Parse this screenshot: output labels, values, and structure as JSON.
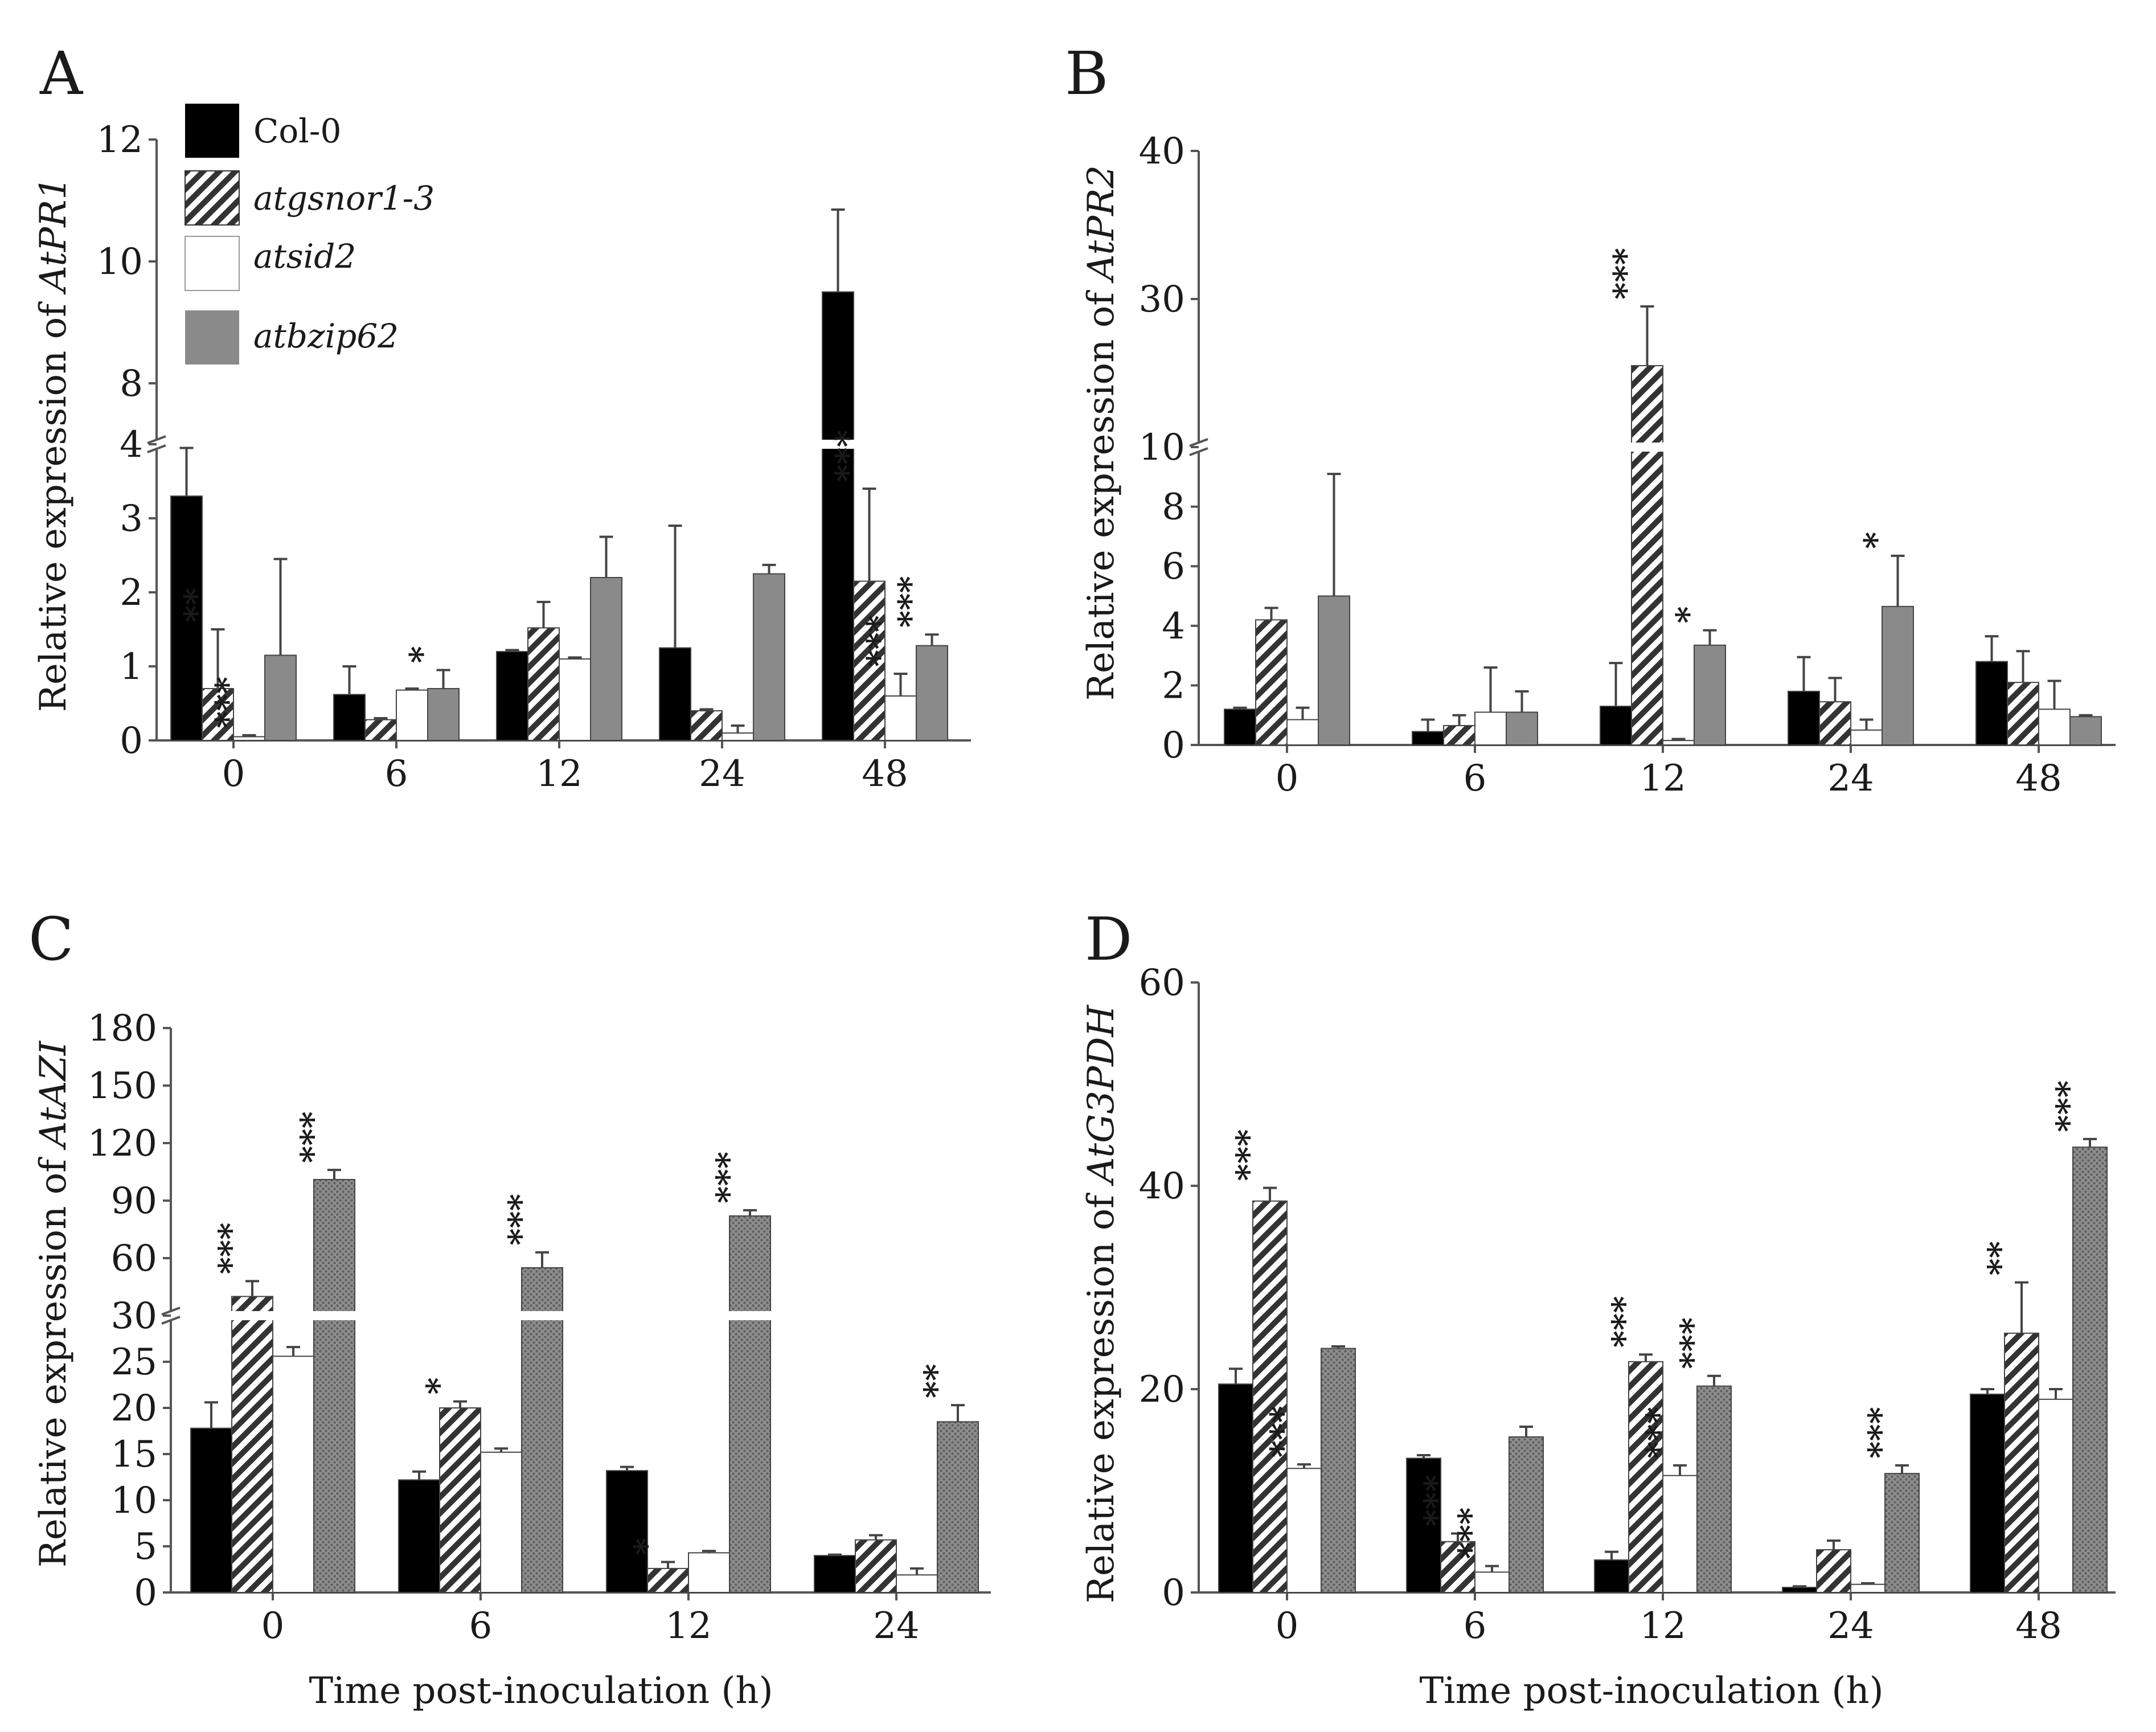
{
  "figure": {
    "colors": {
      "Col-0": "#000000",
      "atgsnor1-3": "hatch",
      "atsid2": "#ffffff",
      "atbzip62": "#8a8a8a",
      "atbzip62_dark": "#7a7a7a",
      "axis": "#555555"
    }
  },
  "chart_data": [
    {
      "panel": "A",
      "type": "bar",
      "ylabel_prefix": "Relative expression of ",
      "ylabel_gene": "AtPR1",
      "xlabel": "",
      "categories": [
        "0",
        "6",
        "12",
        "24",
        "48"
      ],
      "series": [
        {
          "name": "Col-0",
          "values": [
            3.3,
            0.62,
            1.2,
            1.25,
            9.5
          ],
          "errors": [
            0.65,
            0.38,
            0.02,
            1.65,
            1.35
          ],
          "sig": [
            "",
            "",
            "",
            "",
            ""
          ]
        },
        {
          "name": "atgsnor1-3",
          "values": [
            0.7,
            0.28,
            1.52,
            0.4,
            2.15
          ],
          "errors": [
            0.8,
            0.02,
            0.35,
            0.02,
            1.25
          ],
          "sig": [
            "**",
            "",
            "",
            "",
            "***"
          ]
        },
        {
          "name": "atsid2",
          "values": [
            0.05,
            0.68,
            1.1,
            0.1,
            0.6
          ],
          "errors": [
            0.02,
            0.02,
            0.02,
            0.1,
            0.3
          ],
          "sig": [
            "***",
            "",
            "",
            "",
            "***"
          ]
        },
        {
          "name": "atbzip62",
          "values": [
            1.15,
            0.7,
            2.2,
            2.25,
            1.28
          ],
          "errors": [
            1.3,
            0.25,
            0.55,
            0.12,
            0.15
          ],
          "sig": [
            "",
            "*",
            "",
            "",
            "***"
          ]
        }
      ],
      "y_axis": {
        "lower_ticks": [
          "0",
          "1",
          "2",
          "3",
          "4"
        ],
        "lower_range": [
          0,
          4
        ],
        "upper_ticks": [
          "8",
          "10",
          "12"
        ],
        "upper_range": [
          7,
          12
        ]
      },
      "legend": {
        "position": "top-left",
        "entries": [
          "Col-0",
          "atgsnor1-3",
          "atsid2",
          "atbzip62"
        ]
      }
    },
    {
      "panel": "B",
      "type": "bar",
      "ylabel_prefix": "Relative expression of ",
      "ylabel_gene": "AtPR2",
      "xlabel": "",
      "categories": [
        "0",
        "6",
        "12",
        "24",
        "48"
      ],
      "series": [
        {
          "name": "Col-0",
          "values": [
            1.2,
            0.45,
            1.3,
            1.8,
            2.8
          ],
          "errors": [
            0.05,
            0.4,
            1.45,
            1.15,
            0.85
          ],
          "sig": [
            "",
            "",
            "",
            "",
            ""
          ]
        },
        {
          "name": "atgsnor1-3",
          "values": [
            4.2,
            0.65,
            25.5,
            1.45,
            2.1
          ],
          "errors": [
            0.4,
            0.35,
            4.0,
            0.8,
            1.05
          ],
          "sig": [
            "",
            "",
            "***",
            "",
            ""
          ]
        },
        {
          "name": "atsid2",
          "values": [
            0.85,
            1.1,
            0.15,
            0.5,
            1.2
          ],
          "errors": [
            0.4,
            1.5,
            0.05,
            0.35,
            0.95
          ],
          "sig": [
            "",
            "",
            "",
            "",
            ""
          ]
        },
        {
          "name": "atbzip62",
          "values": [
            5.0,
            1.1,
            3.35,
            4.65,
            0.95
          ],
          "errors": [
            4.1,
            0.7,
            0.5,
            1.7,
            0.05
          ],
          "sig": [
            "",
            "",
            "*",
            "*",
            ""
          ]
        }
      ],
      "y_axis": {
        "lower_ticks": [
          "0",
          "2",
          "4",
          "6",
          "8",
          "10"
        ],
        "lower_range": [
          0,
          10
        ],
        "upper_ticks": [
          "30",
          "40"
        ],
        "upper_range": [
          20,
          40
        ]
      }
    },
    {
      "panel": "C",
      "type": "bar",
      "ylabel_prefix": "Relative expression of ",
      "ylabel_gene": "AtAZI",
      "xlabel": "Time post-inoculation (h)",
      "categories": [
        "0",
        "6",
        "12",
        "24"
      ],
      "series": [
        {
          "name": "Col-0",
          "values": [
            17.8,
            12.2,
            13.2,
            4.0
          ],
          "errors": [
            2.8,
            0.9,
            0.4,
            0.1
          ],
          "sig": [
            "",
            "",
            "",
            ""
          ]
        },
        {
          "name": "atgsnor1-3",
          "values": [
            40,
            20.0,
            2.6,
            5.7
          ],
          "errors": [
            8,
            0.7,
            0.7,
            0.5
          ],
          "sig": [
            "***",
            "*",
            "*",
            ""
          ]
        },
        {
          "name": "atsid2",
          "values": [
            25.6,
            15.2,
            4.3,
            1.9
          ],
          "errors": [
            1.0,
            0.4,
            0.2,
            0.7
          ],
          "sig": [
            "",
            "",
            "",
            ""
          ]
        },
        {
          "name": "atbzip62",
          "values": [
            101,
            55,
            82,
            18.5
          ],
          "errors": [
            5,
            8,
            3,
            1.8
          ],
          "sig": [
            "***",
            "***",
            "***",
            "**"
          ]
        }
      ],
      "y_axis": {
        "lower_ticks": [
          "0",
          "5",
          "10",
          "15",
          "20",
          "25",
          "30"
        ],
        "lower_range": [
          0,
          30
        ],
        "upper_ticks": [
          "60",
          "90",
          "120",
          "150",
          "180"
        ],
        "upper_range": [
          30,
          180
        ]
      }
    },
    {
      "panel": "D",
      "type": "bar",
      "ylabel_prefix": "Relative expression of ",
      "ylabel_gene": "AtG3PDH",
      "xlabel": "Time post-inoculation (h)",
      "categories": [
        "0",
        "6",
        "12",
        "24",
        "48"
      ],
      "series": [
        {
          "name": "Col-0",
          "values": [
            20.5,
            13.2,
            3.2,
            0.5,
            19.5
          ],
          "errors": [
            1.5,
            0.3,
            0.8,
            0.1,
            0.5
          ],
          "sig": [
            "",
            "",
            "",
            "",
            ""
          ]
        },
        {
          "name": "atgsnor1-3",
          "values": [
            38.5,
            5.0,
            22.7,
            4.2,
            25.5
          ],
          "errors": [
            1.3,
            0.8,
            0.7,
            0.9,
            5.0
          ],
          "sig": [
            "***",
            "***",
            "***",
            "",
            "**"
          ]
        },
        {
          "name": "atsid2",
          "values": [
            12.2,
            2.0,
            11.5,
            0.8,
            19.0
          ],
          "errors": [
            0.4,
            0.6,
            1.0,
            0.1,
            1.0
          ],
          "sig": [
            "***",
            "***",
            "***",
            "",
            ""
          ]
        },
        {
          "name": "atbzip62",
          "values": [
            24.0,
            15.3,
            20.3,
            11.7,
            43.8
          ],
          "errors": [
            0.2,
            1.0,
            1.0,
            0.8,
            0.8
          ],
          "sig": [
            "",
            "",
            "***",
            "***",
            "***"
          ]
        }
      ],
      "y_axis": {
        "ticks": [
          "0",
          "20",
          "40",
          "60"
        ],
        "range": [
          0,
          60
        ]
      }
    }
  ]
}
